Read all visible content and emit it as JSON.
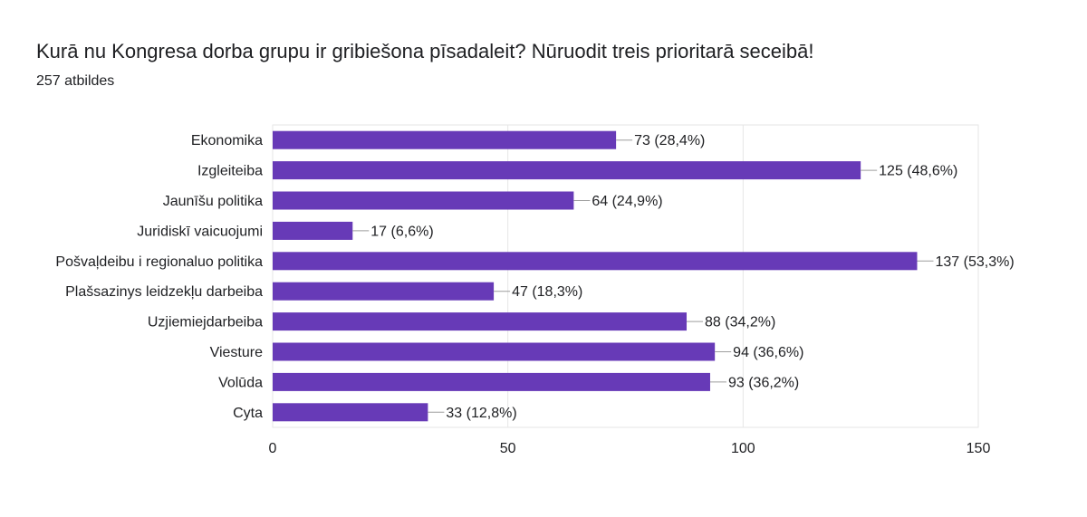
{
  "header": {
    "title": "Kurā nu Kongresa dorba grupu ir gribiešona pīsadaleit? Nūruodit treis prioritarā seceibā!",
    "subtitle": "257 atbildes"
  },
  "colors": {
    "bar": "#673ab7",
    "grid": "#e6e6e6",
    "leader": "#9e9e9e",
    "text": "#202124"
  },
  "chart_data": {
    "type": "bar",
    "orientation": "horizontal",
    "categories": [
      "Ekonomika",
      "Izgleiteiba",
      "Jaunīšu politika",
      "Juridiskī vaicuojumi",
      "Pošvaļdeibu i regionaluo politika",
      "Plašsazinys leidzekļu darbeiba",
      "Uzjiemiejdarbeiba",
      "Viesture",
      "Volūda",
      "Cyta"
    ],
    "values": [
      73,
      125,
      64,
      17,
      137,
      47,
      88,
      94,
      93,
      33
    ],
    "data_labels": [
      "73 (28,4%)",
      "125 (48,6%)",
      "64 (24,9%)",
      "17 (6,6%)",
      "137 (53,3%)",
      "47 (18,3%)",
      "88 (34,2%)",
      "94 (36,6%)",
      "93 (36,2%)",
      "33 (12,8%)"
    ],
    "xlim": [
      0,
      150
    ],
    "xticks": [
      0,
      50,
      100,
      150
    ],
    "grid": true,
    "title": "Kurā nu Kongresa dorba grupu ir gribiešona pīsadaleit? Nūruodit treis prioritarā seceibā!",
    "xlabel": "",
    "ylabel": ""
  }
}
